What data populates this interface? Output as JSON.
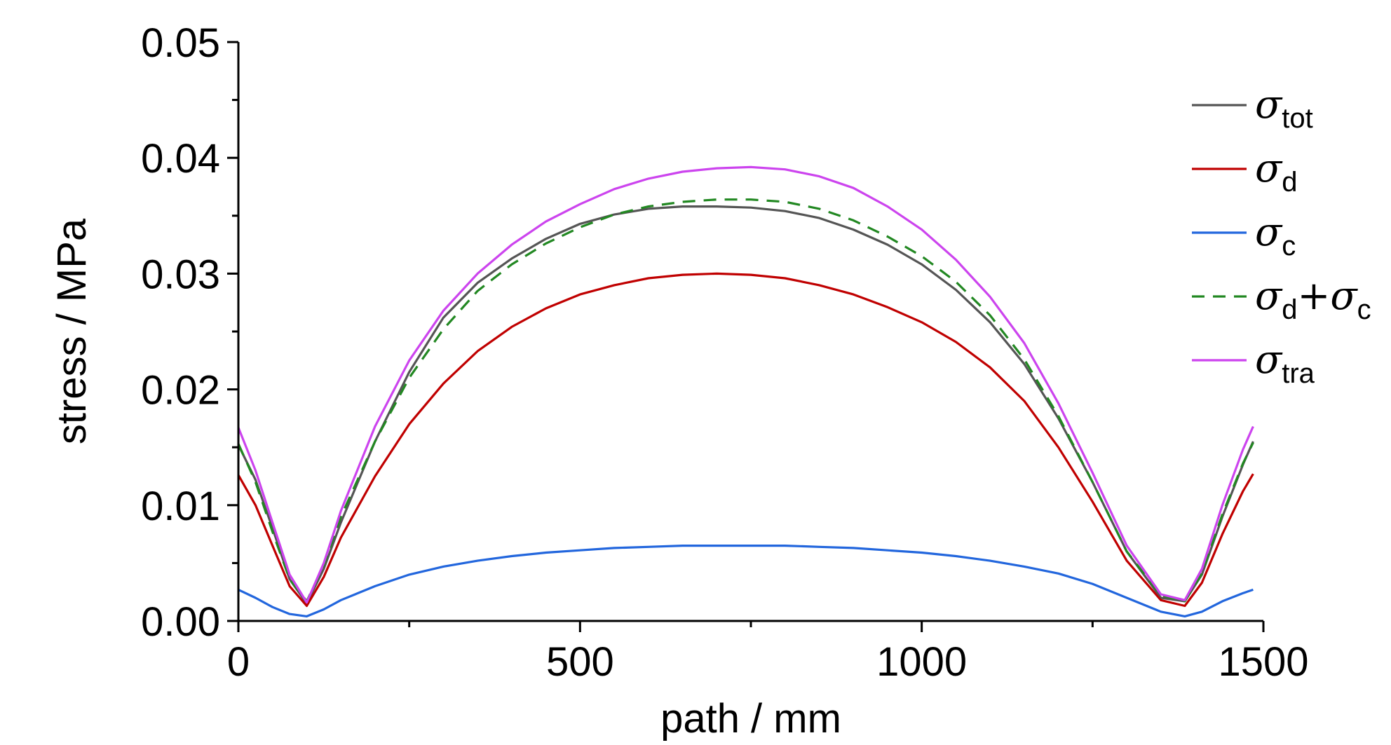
{
  "chart_data": {
    "type": "line",
    "xlabel": "path / mm",
    "ylabel": "stress / MPa",
    "xlim": [
      0,
      1500
    ],
    "ylim": [
      0,
      0.05
    ],
    "xticks": [
      0,
      500,
      1000,
      1500
    ],
    "xtick_labels": [
      "0",
      "500",
      "1000",
      "1500"
    ],
    "yticks": [
      0,
      0.01,
      0.02,
      0.03,
      0.04,
      0.05
    ],
    "ytick_labels": [
      "0.00",
      "0.01",
      "0.02",
      "0.03",
      "0.04",
      "0.05"
    ],
    "grid": false,
    "legend_position": "top-right",
    "series": [
      {
        "symbol": "σ",
        "subscript": "tot",
        "sub_parts": [],
        "color": "#555555",
        "dash": "solid",
        "x": [
          0,
          25,
          50,
          75,
          100,
          125,
          150,
          200,
          250,
          300,
          350,
          400,
          450,
          500,
          550,
          600,
          650,
          700,
          750,
          800,
          850,
          900,
          950,
          1000,
          1050,
          1100,
          1150,
          1200,
          1250,
          1300,
          1350,
          1385,
          1410,
          1440,
          1470,
          1485
        ],
        "y": [
          0.0152,
          0.0122,
          0.008,
          0.0036,
          0.0015,
          0.0045,
          0.0085,
          0.0155,
          0.0215,
          0.0262,
          0.0292,
          0.0313,
          0.033,
          0.0343,
          0.0351,
          0.0356,
          0.0358,
          0.0358,
          0.0357,
          0.0354,
          0.0348,
          0.0338,
          0.0325,
          0.0308,
          0.0286,
          0.0258,
          0.0222,
          0.0175,
          0.012,
          0.006,
          0.002,
          0.0017,
          0.004,
          0.009,
          0.0135,
          0.0155
        ]
      },
      {
        "symbol": "σ",
        "subscript": "d",
        "sub_parts": [],
        "color": "#c00000",
        "dash": "solid",
        "x": [
          0,
          25,
          50,
          75,
          100,
          125,
          150,
          200,
          250,
          300,
          350,
          400,
          450,
          500,
          550,
          600,
          650,
          700,
          750,
          800,
          850,
          900,
          950,
          1000,
          1050,
          1100,
          1150,
          1200,
          1250,
          1300,
          1350,
          1385,
          1410,
          1440,
          1470,
          1485
        ],
        "y": [
          0.0126,
          0.01,
          0.0065,
          0.003,
          0.0013,
          0.0038,
          0.0072,
          0.0125,
          0.017,
          0.0205,
          0.0233,
          0.0254,
          0.027,
          0.0282,
          0.029,
          0.0296,
          0.0299,
          0.03,
          0.0299,
          0.0296,
          0.029,
          0.0282,
          0.0271,
          0.0258,
          0.0241,
          0.0219,
          0.019,
          0.015,
          0.0103,
          0.0052,
          0.0018,
          0.0013,
          0.0033,
          0.0075,
          0.0112,
          0.0127
        ]
      },
      {
        "symbol": "σ",
        "subscript": "c",
        "sub_parts": [],
        "color": "#2266dd",
        "dash": "solid",
        "x": [
          0,
          25,
          50,
          75,
          100,
          125,
          150,
          200,
          250,
          300,
          350,
          400,
          450,
          500,
          550,
          600,
          650,
          700,
          750,
          800,
          850,
          900,
          950,
          1000,
          1050,
          1100,
          1150,
          1200,
          1250,
          1300,
          1350,
          1385,
          1410,
          1440,
          1470,
          1485
        ],
        "y": [
          0.0027,
          0.002,
          0.0012,
          0.0006,
          0.0004,
          0.001,
          0.0018,
          0.003,
          0.004,
          0.0047,
          0.0052,
          0.0056,
          0.0059,
          0.0061,
          0.0063,
          0.0064,
          0.0065,
          0.0065,
          0.0065,
          0.0065,
          0.0064,
          0.0063,
          0.0061,
          0.0059,
          0.0056,
          0.0052,
          0.0047,
          0.0041,
          0.0032,
          0.002,
          0.0008,
          0.0004,
          0.0008,
          0.0017,
          0.0024,
          0.0027
        ]
      },
      {
        "symbol": "σ",
        "subscript": "d",
        "sub_parts": [
          "+",
          "σ",
          "c"
        ],
        "color": "#228822",
        "dash": "dashed",
        "x": [
          0,
          25,
          50,
          75,
          100,
          125,
          150,
          200,
          250,
          300,
          350,
          400,
          450,
          500,
          550,
          600,
          650,
          700,
          750,
          800,
          850,
          900,
          950,
          1000,
          1050,
          1100,
          1150,
          1200,
          1250,
          1300,
          1350,
          1385,
          1410,
          1440,
          1470,
          1485
        ],
        "y": [
          0.0153,
          0.012,
          0.0077,
          0.0036,
          0.0017,
          0.0048,
          0.009,
          0.0155,
          0.021,
          0.0252,
          0.0285,
          0.0308,
          0.0326,
          0.034,
          0.0351,
          0.0358,
          0.0362,
          0.0364,
          0.0364,
          0.0362,
          0.0356,
          0.0346,
          0.0332,
          0.0315,
          0.0293,
          0.0264,
          0.0226,
          0.0177,
          0.012,
          0.006,
          0.0022,
          0.0017,
          0.0041,
          0.0092,
          0.0136,
          0.0154
        ]
      },
      {
        "symbol": "σ",
        "subscript": "tra",
        "sub_parts": [],
        "color": "#cc44ee",
        "dash": "solid",
        "x": [
          0,
          25,
          50,
          75,
          100,
          125,
          150,
          200,
          250,
          300,
          350,
          400,
          450,
          500,
          550,
          600,
          650,
          700,
          750,
          800,
          850,
          900,
          950,
          1000,
          1050,
          1100,
          1150,
          1200,
          1250,
          1300,
          1350,
          1385,
          1410,
          1440,
          1470,
          1485
        ],
        "y": [
          0.0167,
          0.013,
          0.0085,
          0.004,
          0.0016,
          0.005,
          0.0095,
          0.0168,
          0.0225,
          0.0268,
          0.03,
          0.0325,
          0.0345,
          0.036,
          0.0373,
          0.0382,
          0.0388,
          0.0391,
          0.0392,
          0.039,
          0.0384,
          0.0374,
          0.0358,
          0.0338,
          0.0312,
          0.028,
          0.024,
          0.0188,
          0.0128,
          0.0065,
          0.0023,
          0.0018,
          0.0045,
          0.01,
          0.0148,
          0.0168
        ]
      }
    ]
  }
}
